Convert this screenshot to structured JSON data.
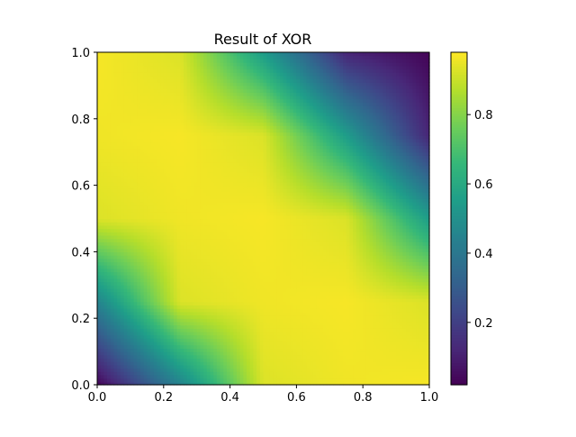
{
  "chart_data": {
    "type": "heatmap",
    "title": "Result of XOR",
    "xlabel": "",
    "ylabel": "",
    "xlim": [
      0.0,
      1.0
    ],
    "ylim": [
      0.0,
      1.0
    ],
    "x_ticks": [
      0.0,
      0.2,
      0.4,
      0.6,
      0.8,
      1.0
    ],
    "x_tick_labels": [
      "0.0",
      "0.2",
      "0.4",
      "0.6",
      "0.8",
      "1.0"
    ],
    "y_ticks": [
      0.0,
      0.2,
      0.4,
      0.6,
      0.8,
      1.0
    ],
    "y_tick_labels": [
      "0.0",
      "0.2",
      "0.4",
      "0.6",
      "0.8",
      "1.0"
    ],
    "grid": false,
    "colormap": "viridis",
    "grid_resolution": [
      100,
      100
    ],
    "color_range": [
      0.02,
      0.98
    ],
    "colorbar": {
      "ticks": [
        0.2,
        0.4,
        0.6,
        0.8
      ],
      "tick_labels": [
        "0.2",
        "0.4",
        "0.6",
        "0.8"
      ]
    },
    "sampled_values": {
      "x": [
        0.0,
        0.25,
        0.5,
        0.75,
        1.0
      ],
      "y": [
        0.0,
        0.25,
        0.5,
        0.75,
        1.0
      ],
      "z": [
        [
          0.03,
          0.45,
          0.93,
          0.96,
          0.97
        ],
        [
          0.45,
          0.93,
          0.96,
          0.97,
          0.93
        ],
        [
          0.93,
          0.96,
          0.97,
          0.93,
          0.55
        ],
        [
          0.96,
          0.97,
          0.93,
          0.55,
          0.12
        ],
        [
          0.97,
          0.93,
          0.55,
          0.12,
          0.03
        ]
      ],
      "z_index_note": "z[row][col] with row = y index, col = x index"
    }
  }
}
